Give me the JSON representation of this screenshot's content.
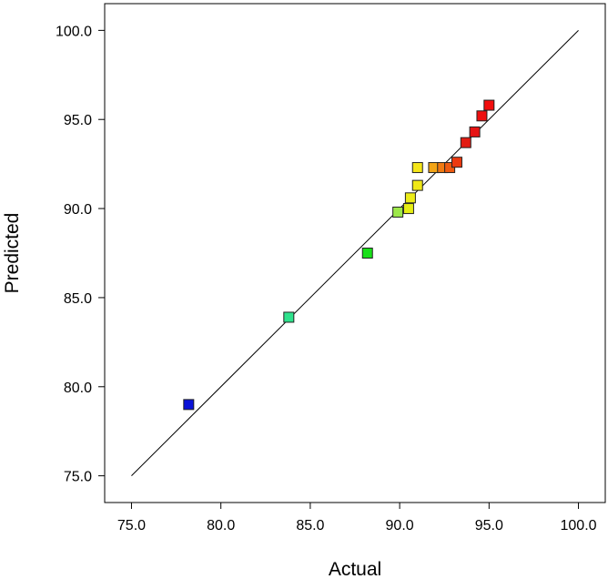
{
  "chart_data": {
    "type": "scatter",
    "xlabel": "Actual",
    "ylabel": "Predicted",
    "xlim": [
      73.5,
      101.5
    ],
    "ylim": [
      73.5,
      101.5
    ],
    "xticks": [
      "75.0",
      "80.0",
      "85.0",
      "90.0",
      "95.0",
      "100.0"
    ],
    "yticks": [
      "75.0",
      "80.0",
      "85.0",
      "90.0",
      "95.0",
      "100.0"
    ],
    "reference_line": {
      "from": [
        75,
        75
      ],
      "to": [
        100,
        100
      ]
    },
    "grid": false,
    "legend": "none",
    "points": [
      {
        "x": 78.2,
        "y": 79.0,
        "color": "#0a12d8"
      },
      {
        "x": 83.8,
        "y": 83.9,
        "color": "#2ee28c"
      },
      {
        "x": 88.2,
        "y": 87.5,
        "color": "#19e019"
      },
      {
        "x": 89.9,
        "y": 89.8,
        "color": "#9de84a"
      },
      {
        "x": 90.5,
        "y": 90.0,
        "color": "#e6ee14"
      },
      {
        "x": 90.6,
        "y": 90.6,
        "color": "#ecec18"
      },
      {
        "x": 91.0,
        "y": 91.3,
        "color": "#f0e816"
      },
      {
        "x": 91.0,
        "y": 92.3,
        "color": "#f5e61a"
      },
      {
        "x": 91.9,
        "y": 92.3,
        "color": "#f2a416"
      },
      {
        "x": 92.4,
        "y": 92.3,
        "color": "#f07a12"
      },
      {
        "x": 92.8,
        "y": 92.3,
        "color": "#ee5a10"
      },
      {
        "x": 93.2,
        "y": 92.6,
        "color": "#ec3a10"
      },
      {
        "x": 93.7,
        "y": 93.7,
        "color": "#e21c12"
      },
      {
        "x": 94.2,
        "y": 94.3,
        "color": "#e61414"
      },
      {
        "x": 94.6,
        "y": 95.2,
        "color": "#ee1010"
      },
      {
        "x": 95.0,
        "y": 95.8,
        "color": "#f20c0c"
      }
    ]
  }
}
